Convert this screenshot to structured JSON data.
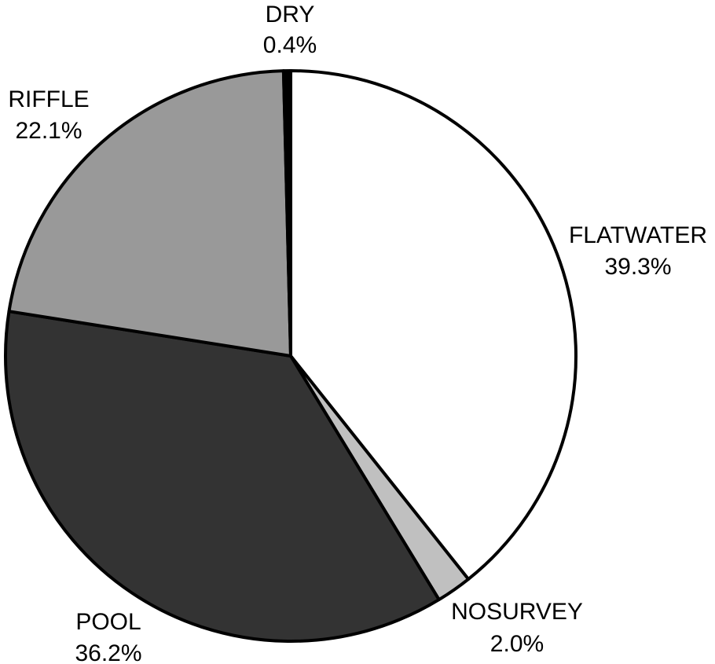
{
  "chart_data": {
    "type": "pie",
    "title": "",
    "slices": [
      {
        "name": "FLATWATER",
        "value": 39.3,
        "label": "39.3%",
        "color": "#ffffff"
      },
      {
        "name": "NOSURVEY",
        "value": 2.0,
        "label": "2.0%",
        "color": "#c0c0c0"
      },
      {
        "name": "POOL",
        "value": 36.2,
        "label": "36.2%",
        "color": "#333333"
      },
      {
        "name": "RIFFLE",
        "value": 22.1,
        "label": "22.1%",
        "color": "#999999"
      },
      {
        "name": "DRY",
        "value": 0.4,
        "label": "0.4%",
        "color": "#000000"
      }
    ],
    "start_angle": "12 o'clock",
    "direction": "clockwise",
    "legend": "none"
  }
}
